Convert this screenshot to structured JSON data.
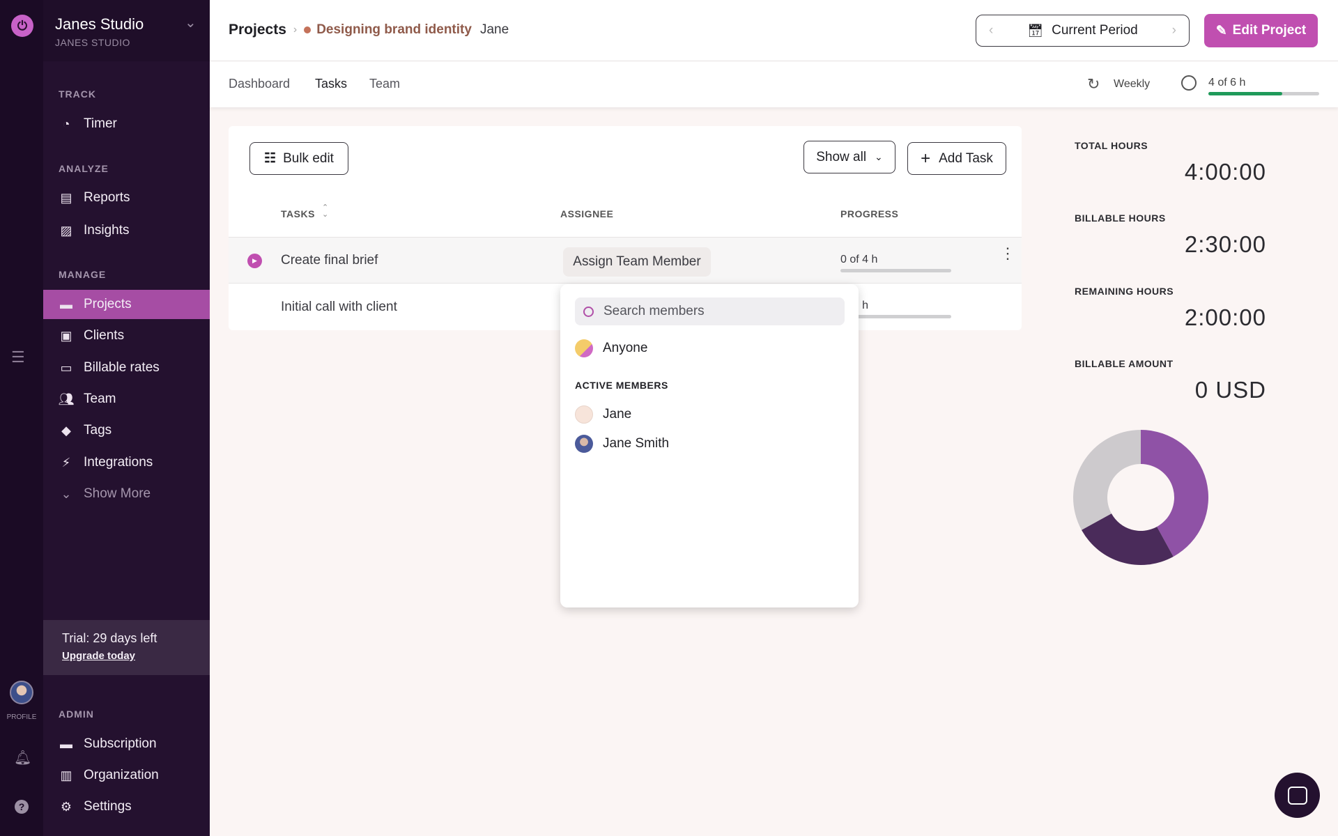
{
  "workspace": {
    "name": "Janes Studio",
    "subtitle": "JANES STUDIO"
  },
  "rail": {
    "profile_label": "PROFILE"
  },
  "sidebar": {
    "sections": [
      {
        "label": "TRACK",
        "items": [
          {
            "label": "Timer",
            "icon": "clock-icon"
          }
        ]
      },
      {
        "label": "ANALYZE",
        "items": [
          {
            "label": "Reports",
            "icon": "document-icon"
          },
          {
            "label": "Insights",
            "icon": "chart-icon"
          }
        ]
      },
      {
        "label": "MANAGE",
        "items": [
          {
            "label": "Projects",
            "icon": "folder-icon",
            "active": true
          },
          {
            "label": "Clients",
            "icon": "contact-icon"
          },
          {
            "label": "Billable rates",
            "icon": "money-icon"
          },
          {
            "label": "Team",
            "icon": "team-icon"
          },
          {
            "label": "Tags",
            "icon": "tag-icon"
          },
          {
            "label": "Integrations",
            "icon": "plug-icon"
          },
          {
            "label": "Show More",
            "icon": "chevron-down-icon"
          }
        ]
      },
      {
        "label": "ADMIN",
        "items": [
          {
            "label": "Subscription",
            "icon": "card-icon"
          },
          {
            "label": "Organization",
            "icon": "building-icon"
          },
          {
            "label": "Settings",
            "icon": "gear-icon"
          }
        ]
      }
    ],
    "trial": {
      "text": "Trial: 29 days left",
      "link": "Upgrade today"
    }
  },
  "header": {
    "breadcrumb_root": "Projects",
    "project": "Designing brand identity",
    "client": "Jane",
    "period": "Current Period",
    "edit": "Edit Project",
    "project_color": "#c4725a",
    "accent": "#c04fb0"
  },
  "tabs": [
    {
      "label": "Dashboard"
    },
    {
      "label": "Tasks",
      "active": true
    },
    {
      "label": "Team"
    }
  ],
  "recurrence": "Weekly",
  "budget": {
    "text": "4 of 6 h",
    "progress": 0.667,
    "color": "#1f9a5a"
  },
  "toolbar": {
    "bulk_edit": "Bulk edit",
    "filter": "Show all",
    "add_task": "Add Task"
  },
  "table": {
    "columns": [
      "TASKS",
      "ASSIGNEE",
      "PROGRESS"
    ],
    "rows": [
      {
        "name": "Create final brief",
        "assignee": "Assign Team Member",
        "progress": "0 of 4 h"
      },
      {
        "name": "Initial call with client",
        "progress": "of 2 h"
      }
    ]
  },
  "dropdown": {
    "search_placeholder": "Search members",
    "anyone": "Anyone",
    "section": "ACTIVE MEMBERS",
    "members": [
      "Jane",
      "Jane Smith"
    ]
  },
  "stats": [
    {
      "label": "TOTAL HOURS",
      "value": "4:00:00"
    },
    {
      "label": "BILLABLE HOURS",
      "value": "2:30:00"
    },
    {
      "label": "REMAINING HOURS",
      "value": "2:00:00"
    },
    {
      "label": "BILLABLE AMOUNT",
      "value": "0 USD"
    }
  ],
  "chart_data": {
    "type": "pie",
    "donut": true,
    "values": [
      42,
      25,
      33
    ],
    "colors": [
      "#8f52a6",
      "#4a2b5a",
      "#cdcacd"
    ]
  }
}
